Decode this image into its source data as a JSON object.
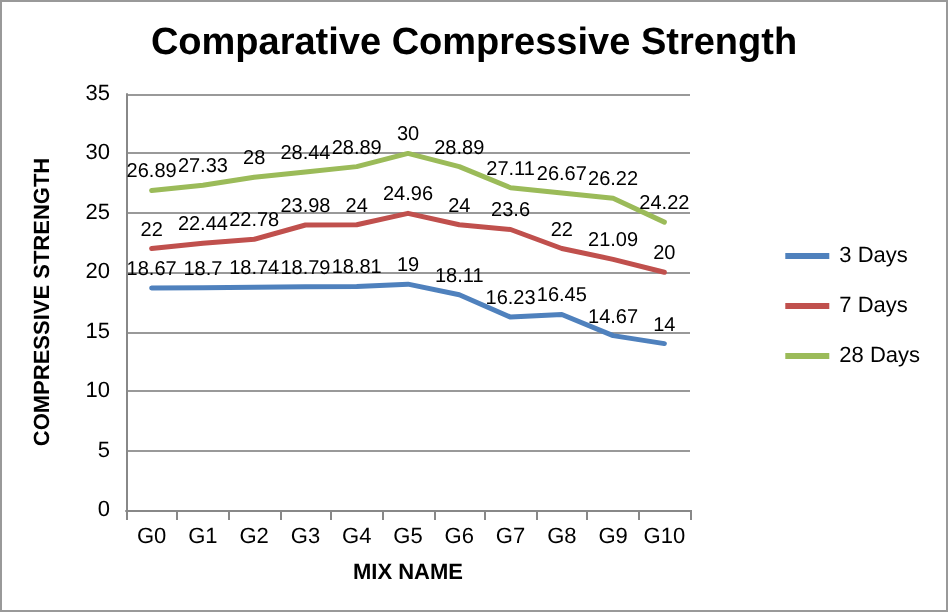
{
  "chart_data": {
    "type": "line",
    "title": "Comparative Compressive Strength",
    "xlabel": "MIX NAME",
    "ylabel": "COMPRESSIVE STRENGTH",
    "categories": [
      "G0",
      "G1",
      "G2",
      "G3",
      "G4",
      "G5",
      "G6",
      "G7",
      "G8",
      "G9",
      "G10"
    ],
    "series": [
      {
        "name": "3 Days",
        "color": "#4f81bd",
        "values": [
          18.67,
          18.7,
          18.74,
          18.79,
          18.81,
          19,
          18.11,
          16.23,
          16.45,
          14.67,
          14
        ]
      },
      {
        "name": "7 Days",
        "color": "#c0504d",
        "values": [
          22,
          22.44,
          22.78,
          23.98,
          24,
          24.96,
          24,
          23.6,
          22,
          21.09,
          20
        ]
      },
      {
        "name": "28 Days",
        "color": "#9bbb59",
        "values": [
          26.89,
          27.33,
          28,
          28.44,
          28.89,
          30,
          28.89,
          27.11,
          26.67,
          26.22,
          24.22
        ]
      }
    ],
    "ylim": [
      0,
      35
    ],
    "yticks": [
      0,
      5,
      10,
      15,
      20,
      25,
      30,
      35
    ],
    "grid": "y",
    "legend": "right",
    "marker": "none",
    "line_style": "solid",
    "data_labels": true
  }
}
